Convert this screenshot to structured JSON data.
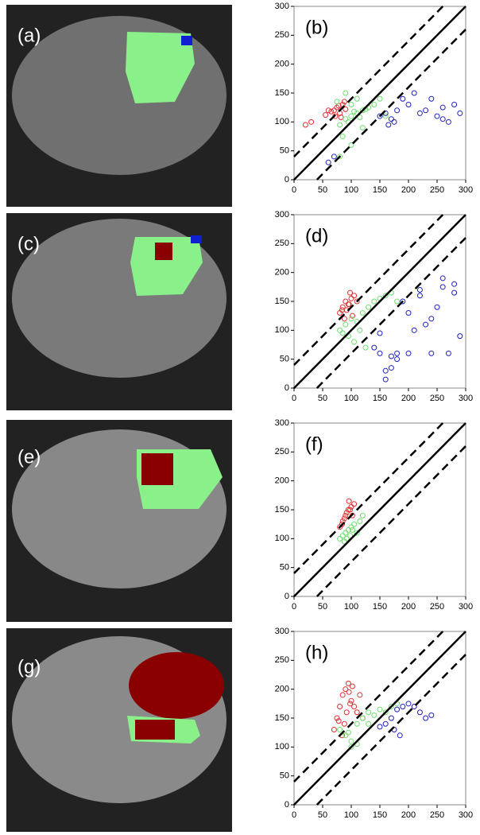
{
  "images": [
    {
      "label": "(a)"
    },
    {
      "label": "(c)"
    },
    {
      "label": "(e)"
    },
    {
      "label": "(g)"
    }
  ],
  "chart_data": [
    {
      "type": "scatter",
      "label": "(b)",
      "xlim": [
        0,
        300
      ],
      "ylim": [
        0,
        300
      ],
      "xticks": [
        0,
        50,
        100,
        150,
        200,
        250,
        300
      ],
      "yticks": [
        0,
        50,
        100,
        150,
        200,
        250,
        300
      ],
      "lines": [
        {
          "slope": 1,
          "intercept": 0,
          "style": "solid"
        },
        {
          "slope": 1,
          "intercept": 40,
          "style": "dashed"
        },
        {
          "slope": 1,
          "intercept": -40,
          "style": "dashed"
        }
      ],
      "series": [
        {
          "color": "#e03030",
          "x": [
            70,
            75,
            80,
            85,
            65,
            90,
            72,
            78,
            60,
            55,
            30,
            20,
            88,
            82
          ],
          "y": [
            120,
            125,
            115,
            130,
            118,
            122,
            110,
            128,
            120,
            112,
            100,
            95,
            135,
            108
          ]
        },
        {
          "color": "#6ee06e",
          "x": [
            80,
            90,
            100,
            110,
            120,
            130,
            140,
            95,
            105,
            115,
            125,
            85,
            100,
            110,
            75,
            150,
            160,
            100,
            120,
            80,
            90
          ],
          "y": [
            95,
            105,
            110,
            115,
            120,
            125,
            130,
            100,
            118,
            108,
            122,
            75,
            60,
            140,
            135,
            140,
            110,
            130,
            90,
            40,
            150
          ]
        },
        {
          "color": "#2020c0",
          "x": [
            150,
            160,
            170,
            180,
            200,
            220,
            240,
            250,
            260,
            270,
            280,
            290,
            210,
            230,
            260,
            190,
            175,
            165,
            60,
            70
          ],
          "y": [
            110,
            115,
            105,
            120,
            130,
            115,
            140,
            110,
            125,
            100,
            130,
            115,
            150,
            120,
            105,
            140,
            100,
            95,
            30,
            40
          ]
        }
      ]
    },
    {
      "type": "scatter",
      "label": "(d)",
      "xlim": [
        0,
        300
      ],
      "ylim": [
        0,
        300
      ],
      "xticks": [
        0,
        50,
        100,
        150,
        200,
        250,
        300
      ],
      "yticks": [
        0,
        50,
        100,
        150,
        200,
        250,
        300
      ],
      "lines": [
        {
          "slope": 1,
          "intercept": 0,
          "style": "solid"
        },
        {
          "slope": 1,
          "intercept": 40,
          "style": "dashed"
        },
        {
          "slope": 1,
          "intercept": -40,
          "style": "dashed"
        }
      ],
      "series": [
        {
          "color": "#e03030",
          "x": [
            80,
            85,
            90,
            95,
            100,
            105,
            110,
            88,
            92,
            98,
            102,
            84,
            96
          ],
          "y": [
            130,
            140,
            150,
            145,
            155,
            160,
            150,
            120,
            135,
            165,
            125,
            135,
            145
          ]
        },
        {
          "color": "#6ee06e",
          "x": [
            80,
            90,
            100,
            110,
            120,
            130,
            140,
            150,
            160,
            170,
            180,
            95,
            105,
            115,
            125,
            85
          ],
          "y": [
            100,
            110,
            120,
            115,
            130,
            140,
            150,
            155,
            160,
            165,
            150,
            90,
            80,
            100,
            70,
            95
          ]
        },
        {
          "color": "#2020c0",
          "x": [
            150,
            160,
            170,
            180,
            190,
            200,
            210,
            220,
            230,
            240,
            250,
            260,
            270,
            280,
            290,
            160,
            170,
            180,
            200,
            220,
            240,
            260,
            280,
            150,
            140
          ],
          "y": [
            60,
            15,
            35,
            60,
            150,
            130,
            100,
            170,
            110,
            60,
            140,
            175,
            60,
            165,
            90,
            30,
            55,
            50,
            60,
            160,
            120,
            190,
            180,
            95,
            70
          ]
        }
      ]
    },
    {
      "type": "scatter",
      "label": "(f)",
      "xlim": [
        0,
        300
      ],
      "ylim": [
        0,
        300
      ],
      "xticks": [
        0,
        50,
        100,
        150,
        200,
        250,
        300
      ],
      "yticks": [
        0,
        50,
        100,
        150,
        200,
        250,
        300
      ],
      "lines": [
        {
          "slope": 1,
          "intercept": 0,
          "style": "solid"
        },
        {
          "slope": 1,
          "intercept": 40,
          "style": "dashed"
        },
        {
          "slope": 1,
          "intercept": -40,
          "style": "dashed"
        }
      ],
      "series": [
        {
          "color": "#e03030",
          "x": [
            80,
            85,
            90,
            95,
            100,
            105,
            88,
            92,
            98,
            84,
            96,
            102
          ],
          "y": [
            120,
            130,
            140,
            150,
            155,
            160,
            135,
            145,
            150,
            125,
            165,
            140
          ]
        },
        {
          "color": "#6ee06e",
          "x": [
            80,
            85,
            90,
            95,
            100,
            105,
            110,
            115,
            120,
            88,
            92,
            98,
            102
          ],
          "y": [
            100,
            105,
            110,
            115,
            120,
            125,
            110,
            130,
            140,
            95,
            100,
            105,
            115
          ]
        }
      ]
    },
    {
      "type": "scatter",
      "label": "(h)",
      "xlim": [
        0,
        300
      ],
      "ylim": [
        0,
        300
      ],
      "xticks": [
        0,
        50,
        100,
        150,
        200,
        250,
        300
      ],
      "yticks": [
        0,
        50,
        100,
        150,
        200,
        250,
        300
      ],
      "lines": [
        {
          "slope": 1,
          "intercept": 0,
          "style": "solid"
        },
        {
          "slope": 1,
          "intercept": 40,
          "style": "dashed"
        },
        {
          "slope": 1,
          "intercept": -40,
          "style": "dashed"
        }
      ],
      "series": [
        {
          "color": "#e03030",
          "x": [
            70,
            75,
            80,
            85,
            90,
            95,
            100,
            105,
            110,
            115,
            120,
            88,
            92,
            98,
            102,
            84,
            96,
            78
          ],
          "y": [
            130,
            150,
            170,
            190,
            200,
            210,
            180,
            170,
            160,
            190,
            150,
            140,
            160,
            175,
            205,
            120,
            195,
            145
          ]
        },
        {
          "color": "#6ee06e",
          "x": [
            80,
            90,
            100,
            110,
            120,
            130,
            140,
            150,
            160,
            170,
            180,
            100,
            110,
            95,
            130
          ],
          "y": [
            130,
            120,
            110,
            140,
            150,
            160,
            155,
            165,
            160,
            170,
            175,
            100,
            105,
            125,
            140
          ]
        },
        {
          "color": "#2020c0",
          "x": [
            160,
            170,
            180,
            190,
            200,
            210,
            220,
            230,
            240,
            175,
            185,
            150
          ],
          "y": [
            140,
            150,
            165,
            170,
            175,
            170,
            160,
            150,
            155,
            130,
            120,
            135
          ]
        }
      ]
    }
  ]
}
